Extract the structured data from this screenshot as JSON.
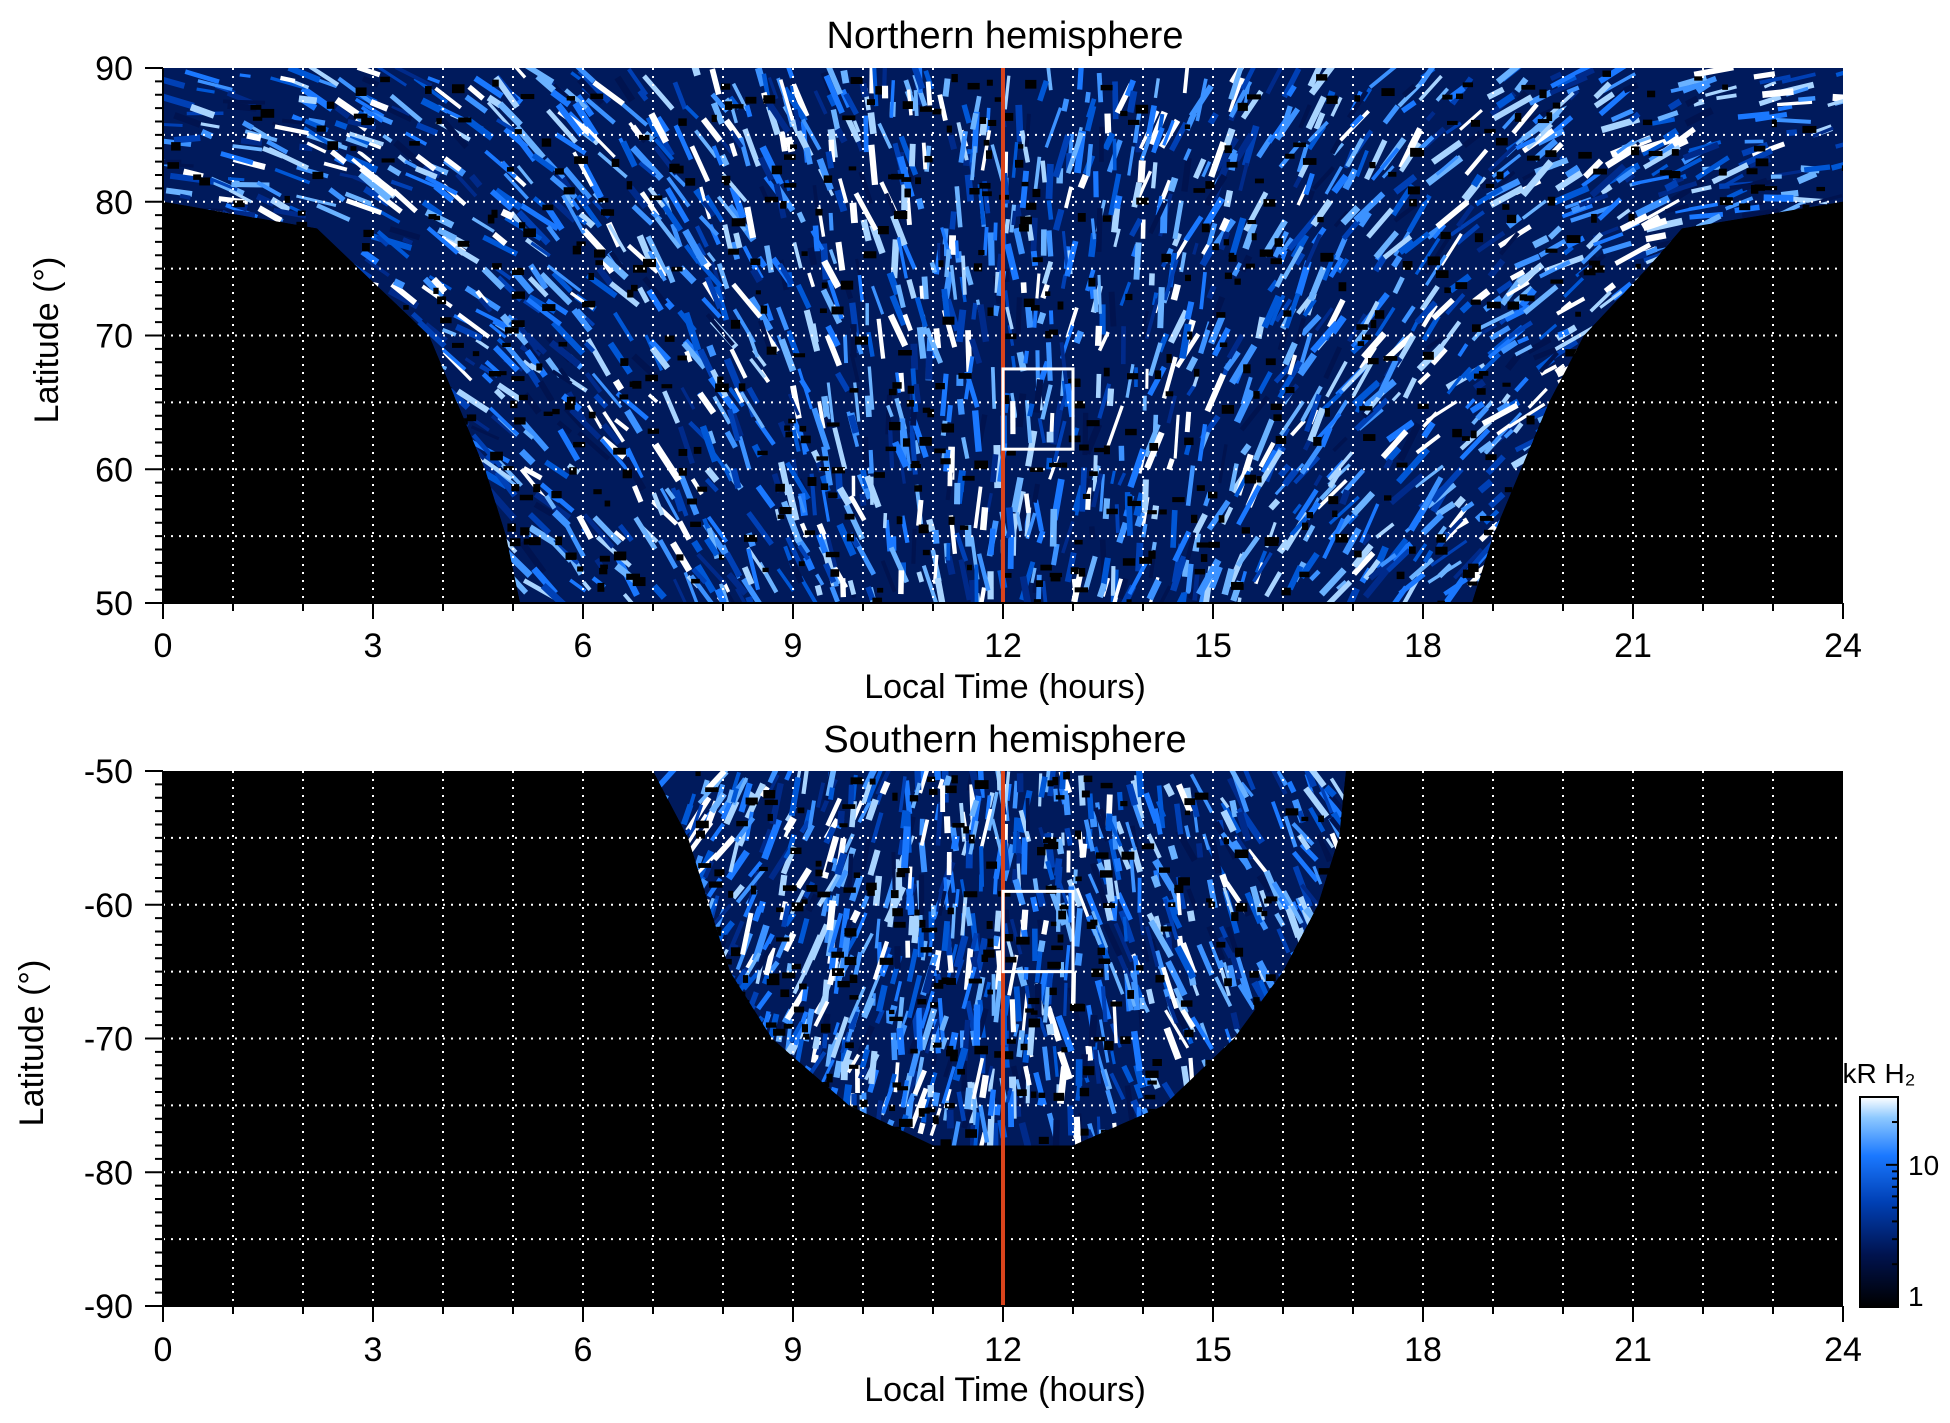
{
  "chart_data": [
    {
      "type": "heatmap",
      "title": "Northern hemisphere",
      "xlabel": "Local Time (hours)",
      "ylabel": "Latitude (°)",
      "xlim": [
        0,
        24
      ],
      "ylim": [
        50,
        90
      ],
      "xticks": [
        0,
        3,
        6,
        9,
        12,
        15,
        18,
        21,
        24
      ],
      "yticks": [
        50,
        60,
        70,
        80,
        90
      ],
      "x_minor_step": 1,
      "y_minor_step": 1,
      "grid_x": [
        1,
        2,
        3,
        4,
        5,
        6,
        7,
        8,
        9,
        10,
        11,
        12,
        13,
        14,
        15,
        16,
        17,
        18,
        19,
        20,
        21,
        22,
        23
      ],
      "grid_y": [
        55,
        60,
        65,
        70,
        75,
        80,
        85
      ],
      "grid": "dotted white",
      "noon_line": {
        "x": 12,
        "color": "#d9441c"
      },
      "box": {
        "x0": 12,
        "x1": 13,
        "y0": 61.5,
        "y1": 67.5
      },
      "coverage": [
        {
          "lat": 50,
          "lt_min": 5.1,
          "lt_max": 18.7
        },
        {
          "lat": 55,
          "lt_min": 4.9,
          "lt_max": 19.0
        },
        {
          "lat": 60,
          "lt_min": 4.6,
          "lt_max": 19.4
        },
        {
          "lat": 65,
          "lt_min": 4.2,
          "lt_max": 19.8
        },
        {
          "lat": 70,
          "lt_min": 3.8,
          "lt_max": 20.3
        },
        {
          "lat": 75,
          "lt_min": 2.8,
          "lt_max": 21.2
        },
        {
          "lat": 78,
          "lt_min": 2.2,
          "lt_max": 21.7
        },
        {
          "lat": 80,
          "lt_min": 0.0,
          "lt_max": 24.0
        },
        {
          "lat": 90,
          "lt_min": 0.0,
          "lt_max": 24.0
        }
      ],
      "colorscale": {
        "scale": "log",
        "min": 1,
        "max": 30,
        "label": "kR H₂",
        "ticks": [
          1,
          10
        ],
        "colors": [
          "#000000",
          "#00134f",
          "#0040b5",
          "#1a78ff",
          "#8cc8ff",
          "#ffffff"
        ]
      }
    },
    {
      "type": "heatmap",
      "title": "Southern hemisphere",
      "xlabel": "Local Time (hours)",
      "ylabel": "Latitude (°)",
      "xlim": [
        0,
        24
      ],
      "ylim": [
        -90,
        -50
      ],
      "xticks": [
        0,
        3,
        6,
        9,
        12,
        15,
        18,
        21,
        24
      ],
      "yticks": [
        -90,
        -80,
        -70,
        -60,
        -50
      ],
      "x_minor_step": 1,
      "y_minor_step": 1,
      "grid_x": [
        1,
        2,
        3,
        4,
        5,
        6,
        7,
        8,
        9,
        10,
        11,
        12,
        13,
        14,
        15,
        16,
        17,
        18,
        19,
        20,
        21,
        22,
        23
      ],
      "grid_y": [
        -85,
        -80,
        -75,
        -70,
        -65,
        -60,
        -55
      ],
      "grid": "dotted white",
      "noon_line": {
        "x": 12,
        "color": "#d9441c"
      },
      "box": {
        "x0": 12,
        "x1": 13,
        "y0": -65,
        "y1": -59
      },
      "coverage": [
        {
          "lat": -50,
          "lt_min": 7.0,
          "lt_max": 16.9
        },
        {
          "lat": -55,
          "lt_min": 7.5,
          "lt_max": 16.8
        },
        {
          "lat": -60,
          "lt_min": 7.8,
          "lt_max": 16.5
        },
        {
          "lat": -65,
          "lt_min": 8.1,
          "lt_max": 16.0
        },
        {
          "lat": -70,
          "lt_min": 8.7,
          "lt_max": 15.3
        },
        {
          "lat": -75,
          "lt_min": 9.8,
          "lt_max": 14.3
        },
        {
          "lat": -78,
          "lt_min": 11.0,
          "lt_max": 13.0
        }
      ],
      "colorscale": {
        "scale": "log",
        "min": 1,
        "max": 30,
        "label": "kR H₂",
        "ticks": [
          1,
          10
        ],
        "colors": [
          "#000000",
          "#00134f",
          "#0040b5",
          "#1a78ff",
          "#8cc8ff",
          "#ffffff"
        ]
      }
    }
  ],
  "colorbar": {
    "label": "kR H₂",
    "ticks": [
      {
        "value": 1,
        "label": "1"
      },
      {
        "value": 10,
        "label": "10"
      }
    ],
    "min": 1,
    "max": 30
  }
}
